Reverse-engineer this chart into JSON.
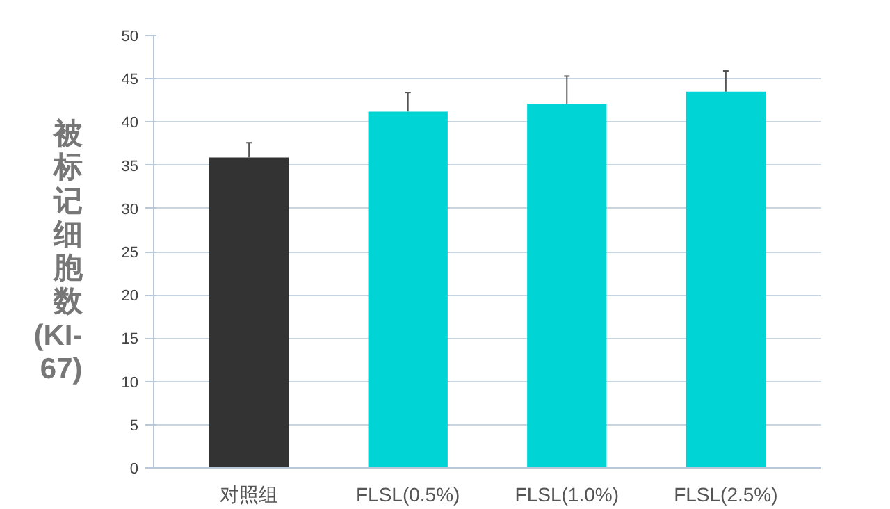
{
  "chart_data": {
    "type": "bar",
    "ylabel": "被标记细胞数(KI-67)",
    "categories": [
      "对照组",
      "FLSL(0.5%)",
      "FLSL(1.0%)",
      "FLSL(2.5%)"
    ],
    "values": [
      35.9,
      41.2,
      42.1,
      43.5
    ],
    "colors": [
      "#333333",
      "#00d4d4",
      "#00d4d4",
      "#00d4d4"
    ],
    "errors": [
      [
        35.9,
        37.6
      ],
      [
        41.2,
        43.4
      ],
      [
        42.1,
        45.3
      ],
      [
        43.5,
        45.9
      ]
    ],
    "ylim": [
      0,
      50
    ],
    "yticks": [
      0,
      5,
      10,
      15,
      20,
      25,
      30,
      35,
      40,
      45,
      50
    ],
    "grid": "y"
  }
}
